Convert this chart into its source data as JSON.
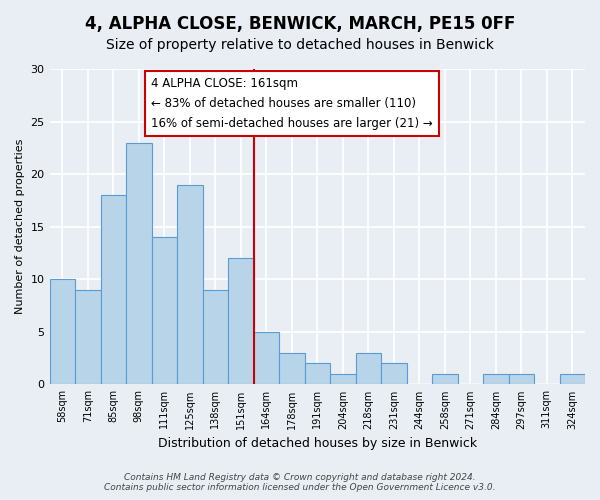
{
  "title": "4, ALPHA CLOSE, BENWICK, MARCH, PE15 0FF",
  "subtitle": "Size of property relative to detached houses in Benwick",
  "xlabel": "Distribution of detached houses by size in Benwick",
  "ylabel": "Number of detached properties",
  "bins": [
    "58sqm",
    "71sqm",
    "85sqm",
    "98sqm",
    "111sqm",
    "125sqm",
    "138sqm",
    "151sqm",
    "164sqm",
    "178sqm",
    "191sqm",
    "204sqm",
    "218sqm",
    "231sqm",
    "244sqm",
    "258sqm",
    "271sqm",
    "284sqm",
    "297sqm",
    "311sqm",
    "324sqm"
  ],
  "values": [
    10,
    9,
    18,
    23,
    14,
    19,
    9,
    12,
    5,
    3,
    2,
    1,
    3,
    2,
    0,
    1,
    0,
    1,
    1,
    0,
    1
  ],
  "bar_color": "#b8d4e8",
  "bar_edge_color": "#5b9bd5",
  "vline_x": 8,
  "vline_color": "#cc0000",
  "annotation_title": "4 ALPHA CLOSE: 161sqm",
  "annotation_line1": "← 83% of detached houses are smaller (110)",
  "annotation_line2": "16% of semi-detached houses are larger (21) →",
  "annotation_box_color": "#ffffff",
  "annotation_box_edge": "#cc0000",
  "ylim": [
    0,
    30
  ],
  "yticks": [
    0,
    5,
    10,
    15,
    20,
    25,
    30
  ],
  "footer1": "Contains HM Land Registry data © Crown copyright and database right 2024.",
  "footer2": "Contains public sector information licensed under the Open Government Licence v3.0.",
  "bg_color": "#e8eef4",
  "grid_color": "#ffffff",
  "title_fontsize": 12,
  "subtitle_fontsize": 10
}
